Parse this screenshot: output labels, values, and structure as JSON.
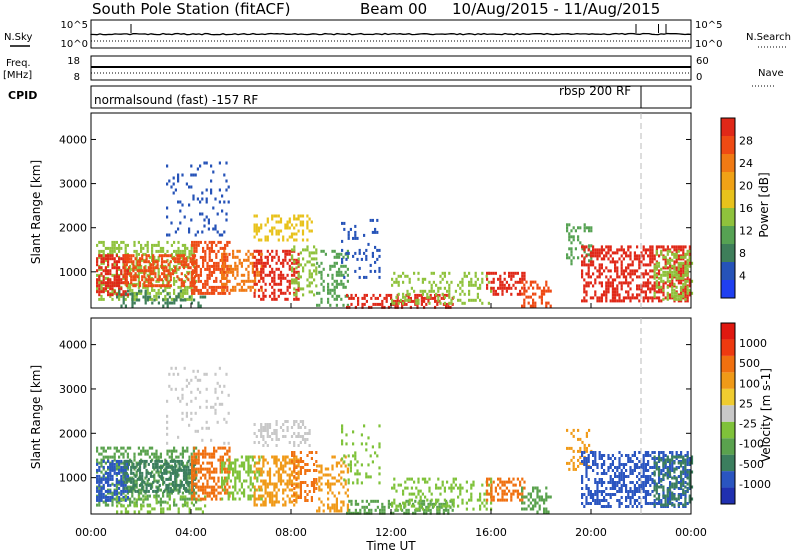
{
  "title": "South Pole Station (fitACF)",
  "beam": "Beam 00",
  "dates": "10/Aug/2015 - 11/Aug/2015",
  "top_panels": {
    "nsky_label": "N.Sky",
    "nsearch_label": "N.Search",
    "freq_label": "Freq.",
    "freq_unit": "[MHz]",
    "nave_label": "Nave",
    "cpid_label": "CPID",
    "nsky_left_ticks": [
      "10^5",
      "10^0"
    ],
    "nsky_right_ticks": [
      "10^5",
      "10^0"
    ],
    "freq_left_ticks": [
      "18",
      "8"
    ],
    "freq_right_ticks": [
      "60",
      "0"
    ],
    "cpid_names": [
      "normalsound (fast) -157 RF",
      "rbsp 200 RF"
    ],
    "cpid_switch_hour": 22.0
  },
  "chart_data": [
    {
      "type": "heatmap",
      "panel": "power",
      "ylabel": "Slant Range [km]",
      "xlabel": "",
      "ylim": [
        180,
        4600
      ],
      "y_ticks": [
        "1000",
        "2000",
        "3000",
        "4000"
      ],
      "colorbar": {
        "label": "Power [dB]",
        "ticks": [
          "4",
          "8",
          "12",
          "16",
          "20",
          "24",
          "28"
        ],
        "colors": [
          "#1f3ff0",
          "#2653b8",
          "#3e7e5a",
          "#56a253",
          "#8fc23c",
          "#e8c21c",
          "#f0a216",
          "#f07a14",
          "#ee4a14",
          "#e02818"
        ]
      }
    },
    {
      "type": "heatmap",
      "panel": "velocity",
      "ylabel": "Slant Range [km]",
      "xlabel": "Time UT",
      "ylim": [
        180,
        4600
      ],
      "y_ticks": [
        "1000",
        "2000",
        "3000",
        "4000"
      ],
      "x_ticks": [
        "00:00",
        "04:00",
        "08:00",
        "12:00",
        "16:00",
        "20:00",
        "00:00"
      ],
      "colorbar": {
        "label": "Velocity [m s-1]",
        "ticks": [
          "1000",
          "500",
          "100",
          "25",
          "-25",
          "-100",
          "-500",
          "-1000"
        ],
        "colors": [
          "#2030b0",
          "#2a55c0",
          "#3b7e5e",
          "#5aa24e",
          "#7fc23a",
          "#c8c8c8",
          "#f0cc30",
          "#f09a18",
          "#f07010",
          "#ee3a10",
          "#e01810"
        ]
      }
    }
  ],
  "blobs": [
    {
      "t0": 0.2,
      "t1": 4.2,
      "r0": 400,
      "r1": 1700,
      "pc": "#8fc23c",
      "vc": "#5aa24e",
      "d": 0.45
    },
    {
      "t0": 0.2,
      "t1": 1.5,
      "r0": 500,
      "r1": 1400,
      "pc": "#e02818",
      "vc": "#2a55c0",
      "d": 0.6
    },
    {
      "t0": 1.3,
      "t1": 4.2,
      "r0": 700,
      "r1": 1400,
      "pc": "#ee4a14",
      "vc": "#3b7e5e",
      "d": 0.55
    },
    {
      "t0": 1.0,
      "t1": 4.6,
      "r0": 250,
      "r1": 600,
      "pc": "#3e7e5a",
      "vc": "#7fc23a",
      "d": 0.25
    },
    {
      "t0": 4.0,
      "t1": 5.5,
      "r0": 500,
      "r1": 1700,
      "pc": "#ee4a14",
      "vc": "#f07010",
      "d": 0.55
    },
    {
      "t0": 5.2,
      "t1": 6.8,
      "r0": 550,
      "r1": 1500,
      "pc": "#f07a14",
      "vc": "#7fc23a",
      "d": 0.45
    },
    {
      "t0": 6.5,
      "t1": 8.3,
      "r0": 400,
      "r1": 1500,
      "pc": "#e02818",
      "vc": "#f09a18",
      "d": 0.5
    },
    {
      "t0": 8.0,
      "t1": 9.0,
      "r0": 500,
      "r1": 1600,
      "pc": "#8fc23c",
      "vc": "#f07010",
      "d": 0.4
    },
    {
      "t0": 9.0,
      "t1": 10.3,
      "r0": 250,
      "r1": 1500,
      "pc": "#56a253",
      "vc": "#f09a18",
      "d": 0.3
    },
    {
      "t0": 6.5,
      "t1": 8.8,
      "r0": 1700,
      "r1": 2300,
      "pc": "#e8c21c",
      "vc": "#c8c8c8",
      "d": 0.35
    },
    {
      "t0": 3.0,
      "t1": 5.5,
      "r0": 1800,
      "r1": 3500,
      "pc": "#2653b8",
      "vc": "#c8c8c8",
      "d": 0.12
    },
    {
      "t0": 10.2,
      "t1": 14.5,
      "r0": 200,
      "r1": 500,
      "pc": "#e02818",
      "vc": "#5aa24e",
      "d": 0.45
    },
    {
      "t0": 12.0,
      "t1": 16.0,
      "r0": 300,
      "r1": 1000,
      "pc": "#8fc23c",
      "vc": "#7fc23a",
      "d": 0.3
    },
    {
      "t0": 15.8,
      "t1": 17.3,
      "r0": 500,
      "r1": 1000,
      "pc": "#e02818",
      "vc": "#f07010",
      "d": 0.5
    },
    {
      "t0": 17.2,
      "t1": 18.4,
      "r0": 250,
      "r1": 800,
      "pc": "#ee4a14",
      "vc": "#5aa24e",
      "d": 0.4
    },
    {
      "t0": 10.0,
      "t1": 11.5,
      "r0": 900,
      "r1": 2200,
      "pc": "#2653b8",
      "vc": "#7fc23a",
      "d": 0.15
    },
    {
      "t0": 19.0,
      "t1": 20.0,
      "r0": 1200,
      "r1": 2100,
      "pc": "#56a253",
      "vc": "#f09a18",
      "d": 0.3
    },
    {
      "t0": 19.6,
      "t1": 24.0,
      "r0": 350,
      "r1": 1600,
      "pc": "#e02818",
      "vc": "#2a55c0",
      "d": 0.5
    },
    {
      "t0": 22.5,
      "t1": 24.0,
      "r0": 400,
      "r1": 1500,
      "pc": "#8fc23c",
      "vc": "#3b7e5e",
      "d": 0.4
    }
  ]
}
